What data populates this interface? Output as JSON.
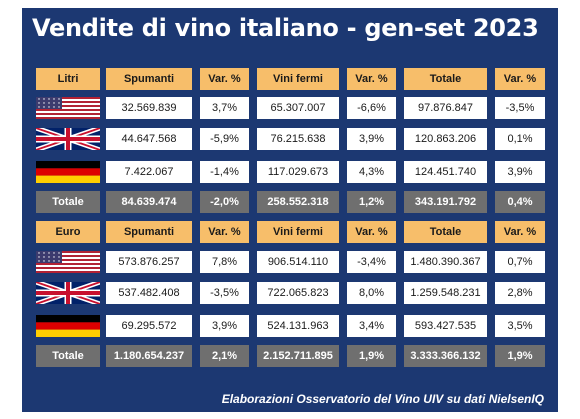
{
  "title": "Vendite di vino italiano - gen-set 2023",
  "footer": "Elaborazioni Osservatorio del Vino UIV su dati NielsenIQ",
  "colors": {
    "background": "#1c3872",
    "header": "#f7be6a",
    "total": "#6f6f6f"
  },
  "tables": [
    {
      "headers": [
        "Litri",
        "Spumanti",
        "Var. %",
        "Vini fermi",
        "Var. %",
        "Totale",
        "Var. %"
      ],
      "rows": [
        {
          "flag": "us-flag",
          "values": [
            "32.569.839",
            "3,7%",
            "65.307.007",
            "-6,6%",
            "97.876.847",
            "-3,5%"
          ]
        },
        {
          "flag": "uk-flag",
          "values": [
            "44.647.568",
            "-5,9%",
            "76.215.638",
            "3,9%",
            "120.863.206",
            "0,1%"
          ]
        },
        {
          "flag": "de-flag",
          "values": [
            "7.422.067",
            "-1,4%",
            "117.029.673",
            "4,3%",
            "124.451.740",
            "3,9%"
          ]
        }
      ],
      "total": [
        "Totale",
        "84.639.474",
        "-2,0%",
        "258.552.318",
        "1,2%",
        "343.191.792",
        "0,4%"
      ]
    },
    {
      "headers": [
        "Euro",
        "Spumanti",
        "Var. %",
        "Vini fermi",
        "Var. %",
        "Totale",
        "Var. %"
      ],
      "rows": [
        {
          "flag": "us-flag",
          "values": [
            "573.876.257",
            "7,8%",
            "906.514.110",
            "-3,4%",
            "1.480.390.367",
            "0,7%"
          ]
        },
        {
          "flag": "uk-flag",
          "values": [
            "537.482.408",
            "-3,5%",
            "722.065.823",
            "8,0%",
            "1.259.548.231",
            "2,8%"
          ]
        },
        {
          "flag": "de-flag",
          "values": [
            "69.295.572",
            "3,9%",
            "524.131.963",
            "3,4%",
            "593.427.535",
            "3,5%"
          ]
        }
      ],
      "total": [
        "Totale",
        "1.180.654.237",
        "2,1%",
        "2.152.711.895",
        "1,9%",
        "3.333.366.132",
        "1,9%"
      ]
    }
  ]
}
